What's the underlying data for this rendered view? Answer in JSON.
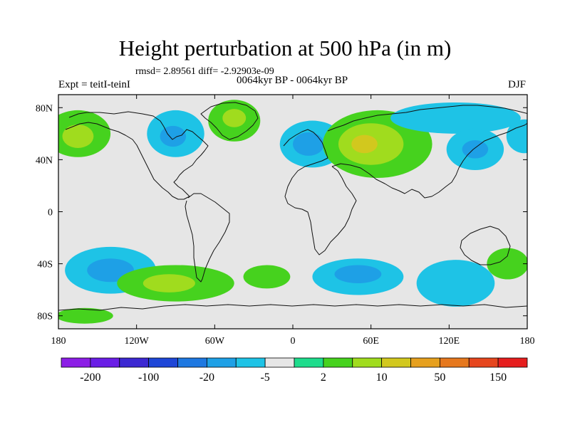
{
  "title": "Height perturbation at 500 hPa (in m)",
  "rmsd_line": "rmsd= 2.89561 diff= -2.92903e-09",
  "subtitle": "0064kyr BP - 0064kyr BP",
  "experiment": "Expt = teitI-teinI",
  "season": "DJF",
  "map": {
    "projection": "cylindrical-equidistant",
    "lon_range": [
      -180,
      180
    ],
    "lat_range": [
      -90,
      90
    ],
    "y_ticks": [
      {
        "lat": 80,
        "label": "80N"
      },
      {
        "lat": 40,
        "label": "40N"
      },
      {
        "lat": 0,
        "label": "0"
      },
      {
        "lat": -40,
        "label": "40S"
      },
      {
        "lat": -80,
        "label": "80S"
      }
    ],
    "x_ticks": [
      {
        "lon": -180,
        "label": "180"
      },
      {
        "lon": -120,
        "label": "120W"
      },
      {
        "lon": -60,
        "label": "60W"
      },
      {
        "lon": 0,
        "label": "0"
      },
      {
        "lon": 60,
        "label": "60E"
      },
      {
        "lon": 120,
        "label": "120E"
      },
      {
        "lon": 180,
        "label": "180"
      }
    ]
  },
  "colorbar": {
    "colors": [
      "#8c1ee6",
      "#6a1ee6",
      "#3c28d2",
      "#1e46d7",
      "#1e78e1",
      "#1ea0e6",
      "#1ec3e6",
      "#e6e6e6",
      "#1edc8c",
      "#46d21e",
      "#a0dc1e",
      "#d2c81e",
      "#e6a01e",
      "#e6781e",
      "#e6461e",
      "#e61e1e"
    ],
    "labels": [
      {
        "after_box": 1,
        "text": "-200"
      },
      {
        "after_box": 3,
        "text": "-100"
      },
      {
        "after_box": 5,
        "text": "-20"
      },
      {
        "after_box": 7,
        "text": "-5"
      },
      {
        "after_box": 9,
        "text": "2"
      },
      {
        "after_box": 11,
        "text": "10"
      },
      {
        "after_box": 13,
        "text": "50"
      },
      {
        "after_box": 15,
        "text": "150"
      }
    ]
  },
  "anomaly_regions": [
    {
      "name": "n-pacific-high",
      "lon": -165,
      "lat": 60,
      "rlon": 25,
      "rlat": 18,
      "level": 9
    },
    {
      "name": "n-pacific-high-core",
      "lon": -165,
      "lat": 58,
      "rlon": 12,
      "rlat": 9,
      "level": 10
    },
    {
      "name": "w-canada-low",
      "lon": -90,
      "lat": 60,
      "rlon": 22,
      "rlat": 18,
      "level": 6
    },
    {
      "name": "w-canada-low-core",
      "lon": -92,
      "lat": 58,
      "rlon": 10,
      "rlat": 8,
      "level": 5
    },
    {
      "name": "greenland-high",
      "lon": -45,
      "lat": 70,
      "rlon": 20,
      "rlat": 16,
      "level": 9
    },
    {
      "name": "greenland-high-core",
      "lon": -45,
      "lat": 72,
      "rlon": 9,
      "rlat": 7,
      "level": 10
    },
    {
      "name": "europe-low",
      "lon": 15,
      "lat": 52,
      "rlon": 25,
      "rlat": 18,
      "level": 6
    },
    {
      "name": "europe-low-core",
      "lon": 12,
      "lat": 52,
      "rlon": 12,
      "rlat": 9,
      "level": 5
    },
    {
      "name": "russia-high",
      "lon": 65,
      "lat": 52,
      "rlon": 42,
      "rlat": 26,
      "level": 9
    },
    {
      "name": "russia-high-mid",
      "lon": 60,
      "lat": 52,
      "rlon": 25,
      "rlat": 16,
      "level": 10
    },
    {
      "name": "russia-high-core",
      "lon": 55,
      "lat": 52,
      "rlon": 10,
      "rlat": 7,
      "level": 11
    },
    {
      "name": "arctic-low",
      "lon": 125,
      "lat": 72,
      "rlon": 50,
      "rlat": 12,
      "level": 6
    },
    {
      "name": "e-asia-low",
      "lon": 140,
      "lat": 48,
      "rlon": 22,
      "rlat": 16,
      "level": 6
    },
    {
      "name": "e-asia-low-core",
      "lon": 140,
      "lat": 48,
      "rlon": 10,
      "rlat": 7,
      "level": 5
    },
    {
      "name": "ne-pacific-low",
      "lon": 178,
      "lat": 58,
      "rlon": 14,
      "rlat": 13,
      "level": 6
    },
    {
      "name": "sw-pacific-low",
      "lon": -140,
      "lat": -45,
      "rlon": 35,
      "rlat": 18,
      "level": 6
    },
    {
      "name": "sw-pacific-low-core",
      "lon": -140,
      "lat": -45,
      "rlon": 18,
      "rlat": 9,
      "level": 5
    },
    {
      "name": "s-pacific-high",
      "lon": -90,
      "lat": -55,
      "rlon": 45,
      "rlat": 14,
      "level": 9
    },
    {
      "name": "s-pacific-high-core",
      "lon": -95,
      "lat": -55,
      "rlon": 20,
      "rlat": 7,
      "level": 10
    },
    {
      "name": "s-atlantic-high",
      "lon": -20,
      "lat": -50,
      "rlon": 18,
      "rlat": 9,
      "level": 9
    },
    {
      "name": "s-indian-low",
      "lon": 50,
      "lat": -50,
      "rlon": 35,
      "rlat": 14,
      "level": 6
    },
    {
      "name": "s-indian-low-core",
      "lon": 50,
      "lat": -48,
      "rlon": 18,
      "rlat": 7,
      "level": 5
    },
    {
      "name": "s-ocean-low",
      "lon": 125,
      "lat": -55,
      "rlon": 30,
      "rlat": 18,
      "level": 6
    },
    {
      "name": "tasman-high",
      "lon": 165,
      "lat": -40,
      "rlon": 16,
      "rlat": 12,
      "level": 9
    },
    {
      "name": "antarctic-high",
      "lon": -160,
      "lat": -80,
      "rlon": 22,
      "rlat": 6,
      "level": 9
    }
  ]
}
